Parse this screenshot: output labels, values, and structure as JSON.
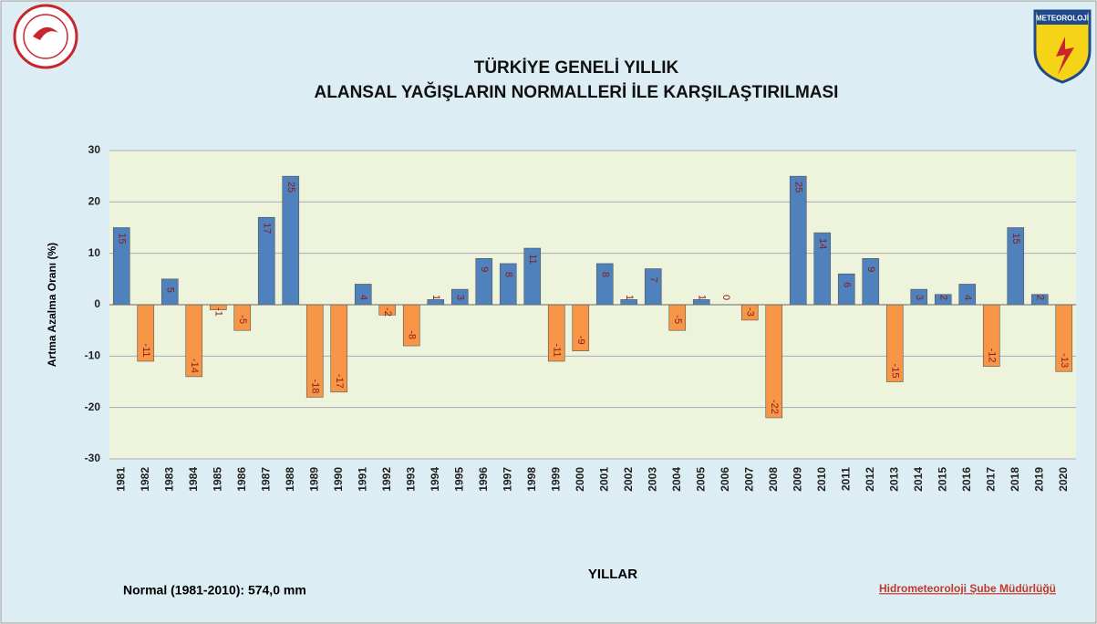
{
  "chart_data": {
    "type": "bar",
    "title_lines": [
      "TÜRKİYE GENELİ  YILLIK",
      "ALANSAL YAĞIŞLARIN NORMALLERİ İLE KARŞILAŞTIRILMASI"
    ],
    "y_label": "Artma Azalma Oranı (%)",
    "x_label": "YILLAR",
    "note": "Normal (1981-2010): 574,0 mm",
    "credit": "Hidrometeoroloji Şube Müdürlüğü",
    "logo_text": "METEOROLOJİ",
    "categories": [
      "1981",
      "1982",
      "1983",
      "1984",
      "1985",
      "1986",
      "1987",
      "1988",
      "1989",
      "1990",
      "1991",
      "1992",
      "1993",
      "1994",
      "1995",
      "1996",
      "1997",
      "1998",
      "1999",
      "2000",
      "2001",
      "2002",
      "2003",
      "2004",
      "2005",
      "2006",
      "2007",
      "2008",
      "2009",
      "2010",
      "2011",
      "2012",
      "2013",
      "2014",
      "2015",
      "2016",
      "2017",
      "2018",
      "2019",
      "2020"
    ],
    "values": [
      15,
      -11,
      5,
      -14,
      -1,
      -5,
      17,
      25,
      -18,
      -17,
      4,
      -2,
      -8,
      1,
      3,
      9,
      8,
      11,
      -11,
      -9,
      8,
      1,
      7,
      -5,
      1,
      0,
      -3,
      -22,
      25,
      14,
      6,
      9,
      -15,
      3,
      2,
      4,
      -12,
      15,
      2,
      -13
    ],
    "positive_color": "#4f81bd",
    "negative_color": "#f79646",
    "ylim": [
      -30,
      30
    ],
    "yticks": [
      -30,
      -20,
      -10,
      0,
      10,
      20,
      30
    ],
    "grid": true
  }
}
